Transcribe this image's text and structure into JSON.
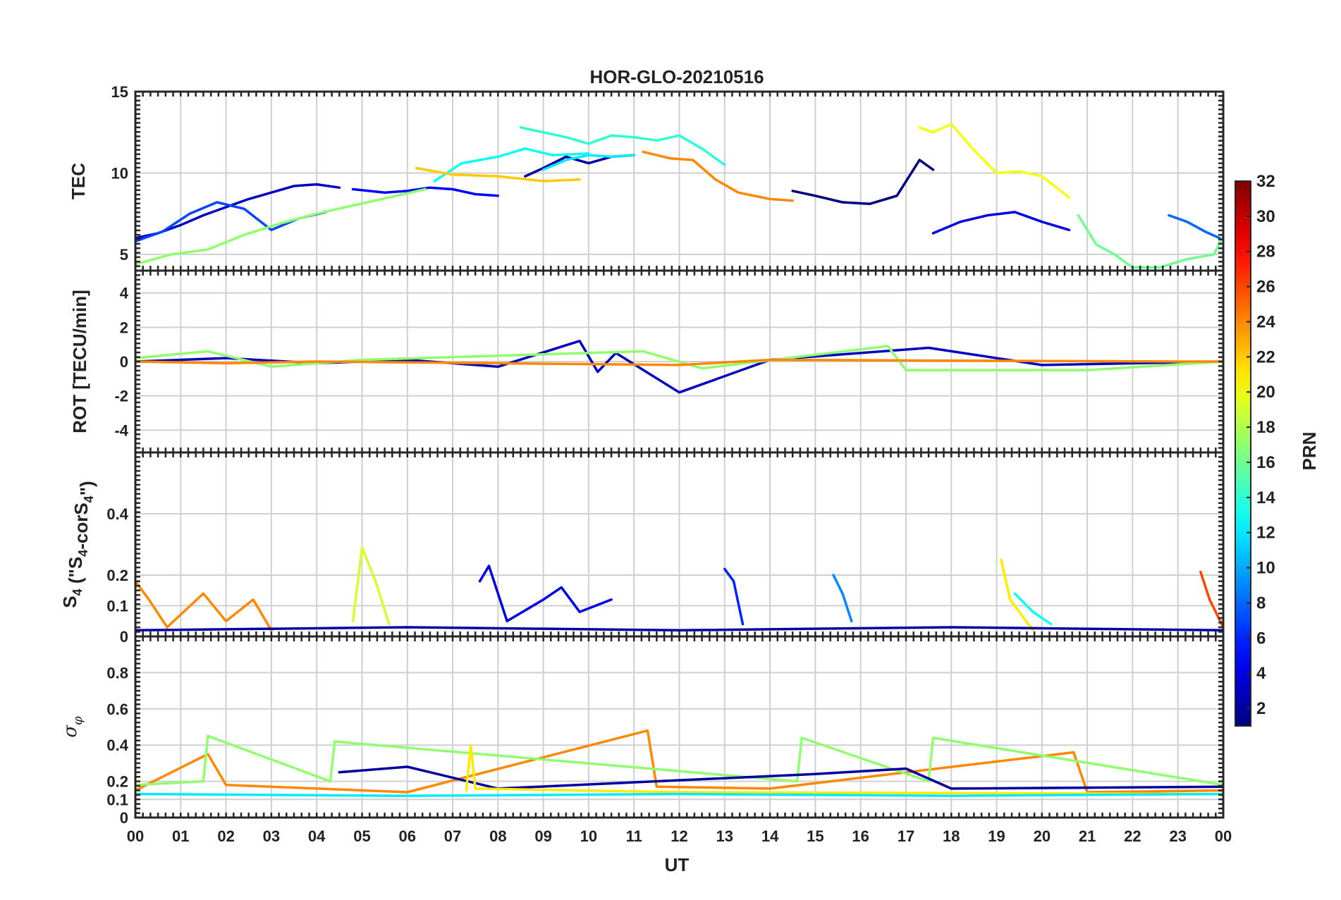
{
  "chart_data": {
    "type": "line",
    "title": "HOR-GLO-20210516",
    "xlabel": "UT",
    "x_range_hours": [
      0,
      24
    ],
    "x_tick_labels": [
      "00",
      "01",
      "02",
      "03",
      "04",
      "05",
      "06",
      "07",
      "08",
      "09",
      "10",
      "11",
      "12",
      "13",
      "14",
      "15",
      "16",
      "17",
      "18",
      "19",
      "20",
      "21",
      "22",
      "23",
      "00"
    ],
    "colorbar": {
      "label": "PRN",
      "range": [
        1,
        32
      ],
      "tick_labels": [
        "2",
        "4",
        "6",
        "8",
        "10",
        "12",
        "14",
        "16",
        "18",
        "20",
        "22",
        "24",
        "26",
        "28",
        "30",
        "32"
      ]
    },
    "panels": [
      {
        "name": "tec",
        "ylabel": "TEC",
        "ylim": [
          4,
          15
        ],
        "yticks": [
          5,
          10,
          15
        ],
        "ytick_labels": [
          "5",
          "10",
          "15"
        ],
        "series": [
          {
            "prn": 3,
            "x": [
              0.0,
              0.5,
              1.0,
              1.5,
              2.0,
              2.5,
              3.0,
              3.5,
              4.0,
              4.5
            ],
            "y": [
              6.0,
              6.3,
              6.8,
              7.4,
              7.9,
              8.4,
              8.8,
              9.2,
              9.3,
              9.1
            ]
          },
          {
            "prn": 5,
            "x": [
              4.8,
              5.5,
              6.0,
              6.5,
              7.0,
              7.5,
              8.0
            ],
            "y": [
              9.0,
              8.8,
              8.9,
              9.1,
              9.0,
              8.7,
              8.6
            ]
          },
          {
            "prn": 7,
            "x": [
              0.0,
              0.6,
              1.2,
              1.8,
              2.4,
              3.0,
              3.6,
              4.2
            ],
            "y": [
              5.8,
              6.4,
              7.5,
              8.2,
              7.8,
              6.5,
              7.2,
              7.6
            ]
          },
          {
            "prn": 2,
            "x": [
              8.6,
              9.0,
              9.5,
              10.0,
              10.5,
              11.0
            ],
            "y": [
              9.8,
              10.3,
              11.0,
              10.6,
              11.0,
              11.1
            ]
          },
          {
            "prn": 12,
            "x": [
              9.0,
              9.5,
              10.0,
              10.5,
              11.0
            ],
            "y": [
              10.2,
              10.8,
              11.1,
              11.0,
              11.1
            ]
          },
          {
            "prn": 14,
            "x": [
              8.5,
              9.0,
              9.5,
              10.0,
              10.5,
              11.0,
              11.5,
              12.0,
              12.5,
              13.0
            ],
            "y": [
              12.8,
              12.5,
              12.2,
              11.8,
              12.3,
              12.2,
              12.0,
              12.3,
              11.5,
              10.5
            ]
          },
          {
            "prn": 13,
            "x": [
              6.6,
              7.2,
              8.0,
              8.6,
              9.2,
              10.0
            ],
            "y": [
              9.5,
              10.6,
              11.0,
              11.5,
              11.1,
              11.2
            ]
          },
          {
            "prn": 22,
            "x": [
              6.2,
              7.0,
              8.0,
              9.0,
              9.8
            ],
            "y": [
              10.3,
              9.9,
              9.8,
              9.5,
              9.6
            ]
          },
          {
            "prn": 24,
            "x": [
              11.2,
              11.8,
              12.3,
              12.8,
              13.3,
              14.0,
              14.5
            ],
            "y": [
              11.3,
              10.9,
              10.8,
              9.6,
              8.8,
              8.4,
              8.3
            ]
          },
          {
            "prn": 1,
            "x": [
              14.5,
              15.0,
              15.6,
              16.2,
              16.8,
              17.3,
              17.6
            ],
            "y": [
              8.9,
              8.6,
              8.2,
              8.1,
              8.6,
              10.8,
              10.2
            ]
          },
          {
            "prn": 20,
            "x": [
              17.3,
              17.6,
              18.0,
              18.5,
              19.0,
              19.5,
              20.0,
              20.6
            ],
            "y": [
              12.8,
              12.5,
              13.0,
              11.4,
              10.0,
              10.1,
              9.8,
              8.5
            ]
          },
          {
            "prn": 4,
            "x": [
              17.6,
              18.2,
              18.8,
              19.4,
              20.0,
              20.6
            ],
            "y": [
              6.3,
              7.0,
              7.4,
              7.6,
              7.0,
              6.5
            ]
          },
          {
            "prn": 8,
            "x": [
              22.8,
              23.2,
              23.6,
              24.0
            ],
            "y": [
              7.4,
              7.0,
              6.4,
              5.9
            ]
          },
          {
            "prn": 16,
            "x": [
              20.8,
              21.2,
              21.6,
              22.0,
              22.6,
              23.2,
              23.8,
              24.0
            ],
            "y": [
              7.4,
              5.6,
              5.0,
              4.2,
              4.2,
              4.7,
              5.0,
              6.2
            ]
          },
          {
            "prn": 17,
            "x": [
              0.0,
              0.8,
              1.6,
              2.4,
              3.2,
              4.0,
              4.8,
              5.6,
              6.4
            ],
            "y": [
              4.4,
              5.0,
              5.3,
              6.2,
              6.9,
              7.5,
              8.0,
              8.5,
              9.0
            ]
          }
        ]
      },
      {
        "name": "rot",
        "ylabel": "ROT [TECU/min]",
        "ylim": [
          -5.3,
          5.3
        ],
        "yticks": [
          -4,
          -2,
          0,
          2,
          4
        ],
        "ytick_labels": [
          "-4",
          "-2",
          "0",
          "2",
          "4"
        ],
        "series": [
          {
            "prn": 3,
            "x": [
              0.0,
              2.0,
              4.0,
              6.0,
              8.0,
              9.8,
              10.2,
              10.6,
              12.0,
              14.0,
              17.5,
              20.0,
              24.0
            ],
            "y": [
              0.0,
              0.2,
              -0.1,
              0.1,
              -0.3,
              1.2,
              -0.6,
              0.5,
              -1.8,
              0.1,
              0.8,
              -0.2,
              0.0
            ]
          },
          {
            "prn": 17,
            "x": [
              0.0,
              1.6,
              3.0,
              5.0,
              11.2,
              12.5,
              16.6,
              17.0,
              21.0,
              24.0
            ],
            "y": [
              0.2,
              0.6,
              -0.3,
              0.1,
              0.6,
              -0.4,
              0.9,
              -0.5,
              -0.5,
              0.0
            ]
          },
          {
            "prn": 24,
            "x": [
              0.0,
              2.0,
              4.0,
              8.0,
              12.0,
              14.0,
              23.0,
              24.0
            ],
            "y": [
              0.0,
              -0.1,
              0.0,
              -0.1,
              -0.2,
              0.1,
              0.0,
              0.0
            ]
          }
        ]
      },
      {
        "name": "s4",
        "ylabel": "S4 (\"S4-corS4\")",
        "ylim": [
          0,
          0.6
        ],
        "yticks": [
          0,
          0.1,
          0.2,
          0.4
        ],
        "ytick_labels": [
          "0",
          "0.1",
          "0.2",
          "0.4"
        ],
        "series": [
          {
            "prn": 24,
            "x": [
              0.0,
              0.3,
              0.7,
              1.5,
              2.0,
              2.6,
              3.0
            ],
            "y": [
              0.18,
              0.12,
              0.03,
              0.14,
              0.05,
              0.12,
              0.02
            ]
          },
          {
            "prn": 19,
            "x": [
              4.8,
              5.0,
              5.3,
              5.6
            ],
            "y": [
              0.05,
              0.29,
              0.18,
              0.04
            ]
          },
          {
            "prn": 4,
            "x": [
              7.6,
              7.8,
              8.2,
              9.0,
              9.4,
              9.8,
              10.5
            ],
            "y": [
              0.18,
              0.23,
              0.05,
              0.12,
              0.16,
              0.08,
              0.12
            ]
          },
          {
            "prn": 6,
            "x": [
              13.0,
              13.2,
              13.4
            ],
            "y": [
              0.22,
              0.18,
              0.04
            ]
          },
          {
            "prn": 9,
            "x": [
              15.4,
              15.6,
              15.8
            ],
            "y": [
              0.2,
              0.14,
              0.05
            ]
          },
          {
            "prn": 21,
            "x": [
              19.1,
              19.3,
              19.8
            ],
            "y": [
              0.25,
              0.12,
              0.02
            ]
          },
          {
            "prn": 13,
            "x": [
              19.4,
              19.8,
              20.2
            ],
            "y": [
              0.14,
              0.08,
              0.04
            ]
          },
          {
            "prn": 26,
            "x": [
              23.5,
              23.7,
              24.0
            ],
            "y": [
              0.21,
              0.12,
              0.03
            ]
          },
          {
            "prn": 2,
            "x": [
              0.0,
              6.0,
              12.0,
              18.0,
              24.0
            ],
            "y": [
              0.02,
              0.03,
              0.02,
              0.03,
              0.02
            ]
          }
        ]
      },
      {
        "name": "sigma_phi",
        "ylabel": "σφ",
        "ylim": [
          0,
          1
        ],
        "yticks": [
          0,
          0.1,
          0.2,
          0.4,
          0.6,
          0.8
        ],
        "ytick_labels": [
          "0",
          "0.1",
          "0.2",
          "0.4",
          "0.6",
          "0.8"
        ],
        "series": [
          {
            "prn": 24,
            "x": [
              0.0,
              1.6,
              2.0,
              6.0,
              11.3,
              11.5,
              14.0,
              20.7,
              21.0,
              24.0
            ],
            "y": [
              0.15,
              0.35,
              0.18,
              0.14,
              0.48,
              0.17,
              0.16,
              0.36,
              0.14,
              0.15
            ]
          },
          {
            "prn": 17,
            "x": [
              0.0,
              1.5,
              1.6,
              4.3,
              4.4,
              14.6,
              14.7,
              17.5,
              17.6,
              24.0
            ],
            "y": [
              0.18,
              0.2,
              0.45,
              0.2,
              0.42,
              0.2,
              0.44,
              0.2,
              0.44,
              0.18
            ]
          },
          {
            "prn": 2,
            "x": [
              4.5,
              6.0,
              8.0,
              15.0,
              17.0,
              18.0,
              24.0
            ],
            "y": [
              0.25,
              0.28,
              0.16,
              0.24,
              0.27,
              0.16,
              0.17
            ]
          },
          {
            "prn": 21,
            "x": [
              7.3,
              7.4,
              7.5,
              12.0,
              24.0
            ],
            "y": [
              0.15,
              0.4,
              0.16,
              0.14,
              0.13
            ]
          },
          {
            "prn": 12,
            "x": [
              0.0,
              6.0,
              12.0,
              18.0,
              24.0
            ],
            "y": [
              0.13,
              0.12,
              0.13,
              0.12,
              0.13
            ]
          }
        ]
      }
    ]
  }
}
